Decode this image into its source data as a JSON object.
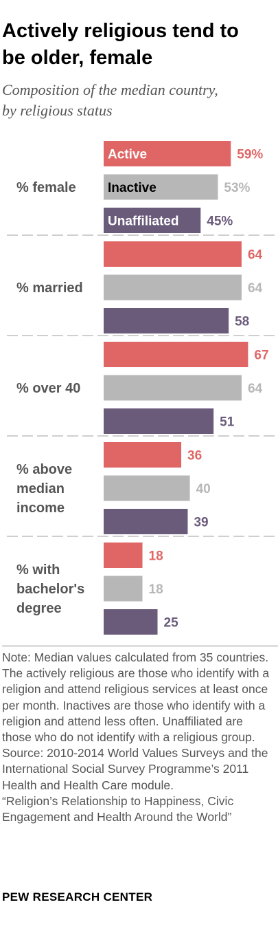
{
  "header": {
    "title_line1": "Actively religious tend to",
    "title_line2": "be older, female",
    "subtitle_line1": "Composition of the median country,",
    "subtitle_line2": "by religious status"
  },
  "chart_data": {
    "type": "bar",
    "orientation": "horizontal",
    "title": "Actively religious tend to be older, female",
    "subtitle": "Composition of the median country, by religious status",
    "categories": [
      "% female",
      "% married",
      "% over 40",
      "% above median income",
      "% with bachelor's degree"
    ],
    "category_lines": [
      [
        "% female"
      ],
      [
        "% married"
      ],
      [
        "% over 40"
      ],
      [
        "% above",
        "median",
        "income"
      ],
      [
        "% with",
        "bachelor's",
        "degree"
      ]
    ],
    "series": [
      {
        "name": "Active",
        "color": "#e06666",
        "values": [
          59,
          64,
          67,
          36,
          18
        ]
      },
      {
        "name": "Inactive",
        "color": "#b7b7b7",
        "values": [
          53,
          64,
          64,
          40,
          18
        ]
      },
      {
        "name": "Unaffiliated",
        "color": "#6b5b7b",
        "values": [
          45,
          58,
          51,
          39,
          25
        ]
      }
    ],
    "value_labels": [
      [
        "59%",
        "53%",
        "45%"
      ],
      [
        "64",
        "64",
        "58"
      ],
      [
        "67",
        "64",
        "51"
      ],
      [
        "36",
        "40",
        "39"
      ],
      [
        "18",
        "18",
        "25"
      ]
    ],
    "xlim": [
      0,
      100
    ],
    "grid": false,
    "legend": "inside-first-group"
  },
  "notes": {
    "note": "Note: Median values calculated from 35 countries. The actively religious are those who identify with a religion and attend religious services at least once per month. Inactives are those who identify with a religion and attend less often. Unaffiliated are those who do not identify with a religious group.",
    "source": "Source: 2010-2014 World Values Surveys and the International Social Survey Programme’s 2011 Health and Health Care module.",
    "report": "“Religion’s Relationship to Happiness, Civic Engagement and Health Around the World”"
  },
  "footer": {
    "brand": "PEW RESEARCH CENTER"
  }
}
